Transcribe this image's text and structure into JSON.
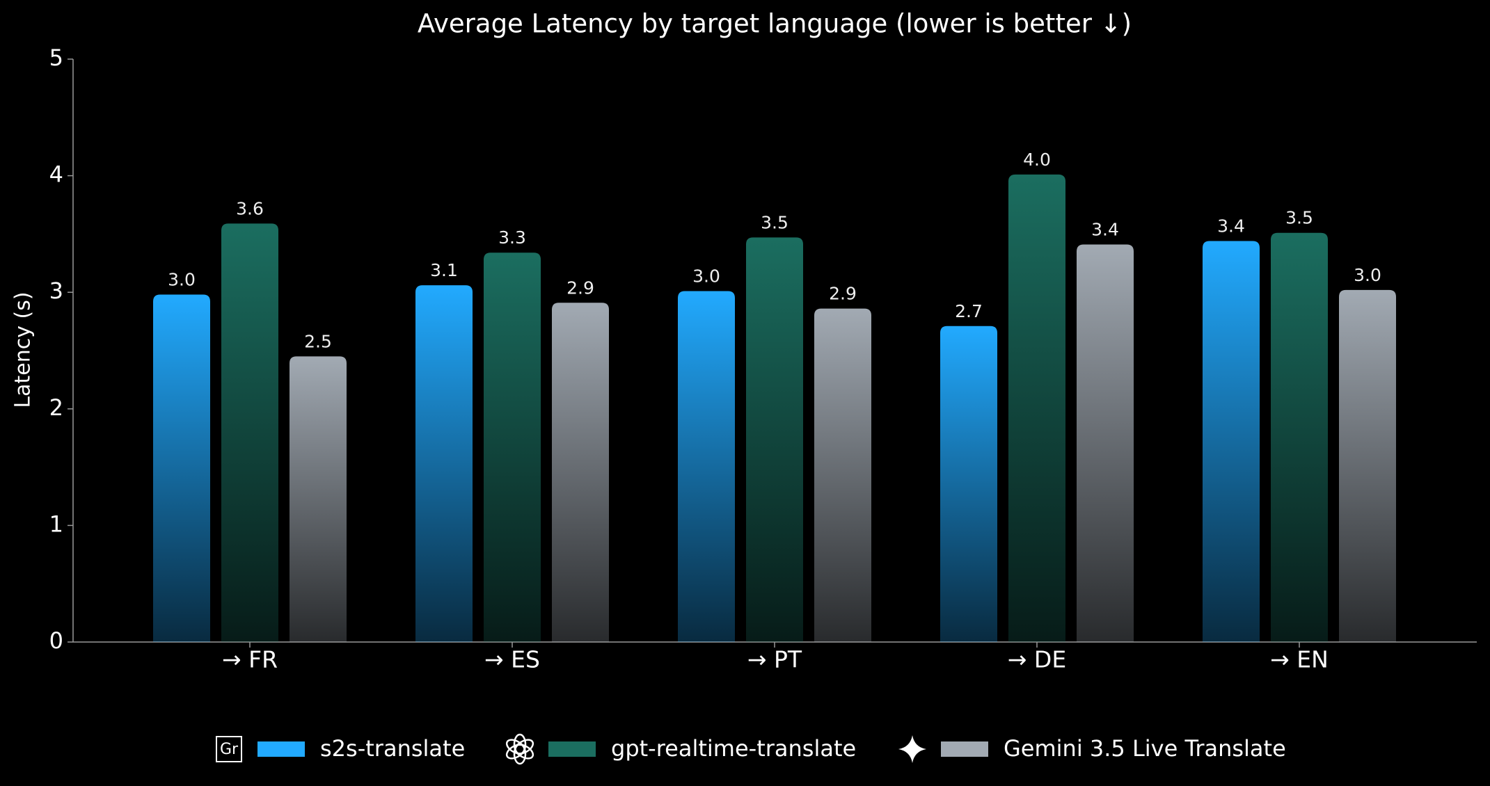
{
  "chart_data": {
    "type": "bar",
    "title": "Average Latency by target language  (lower is better ↓)",
    "y_label": "Latency (s)",
    "categories": [
      "→ FR",
      "→ ES",
      "→ PT",
      "→ DE",
      "→ EN"
    ],
    "series": [
      {
        "name": "s2s-translate",
        "color": "#22aaff",
        "icon_label": "Gr",
        "values": [
          2.98,
          3.06,
          3.01,
          2.71,
          3.44
        ],
        "value_labels": [
          "3.0",
          "3.1",
          "3.0",
          "2.7",
          "3.4"
        ]
      },
      {
        "name": "gpt-realtime-translate",
        "color": "#1b6e60",
        "values": [
          3.59,
          3.34,
          3.47,
          4.01,
          3.51
        ],
        "value_labels": [
          "3.6",
          "3.3",
          "3.5",
          "4.0",
          "3.5"
        ]
      },
      {
        "name": "Gemini 3.5 Live Translate",
        "color": "#a2aab3",
        "values": [
          2.45,
          2.91,
          2.86,
          3.41,
          3.02
        ],
        "value_labels": [
          "2.5",
          "2.9",
          "2.9",
          "3.4",
          "3.0"
        ]
      }
    ],
    "ylim": [
      0,
      5
    ],
    "yticks": [
      0,
      1,
      2,
      3,
      4,
      5
    ],
    "grid": false,
    "legend": "bottom"
  }
}
